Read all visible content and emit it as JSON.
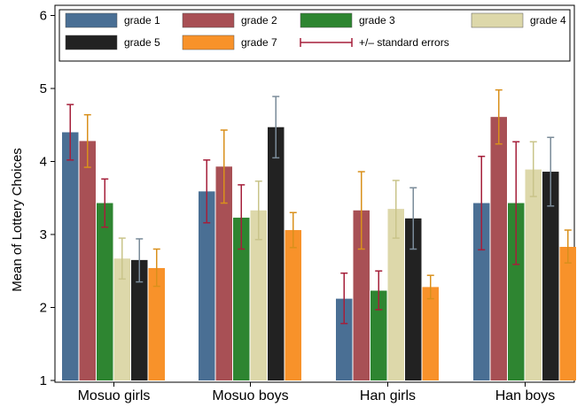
{
  "chart_data": {
    "type": "bar",
    "ylabel": "Mean of Lottery Choices",
    "xlabel": "",
    "ylim": [
      1,
      6
    ],
    "yticks": [
      1,
      2,
      3,
      4,
      5,
      6
    ],
    "grid": false,
    "legend_placement": "top",
    "categories": [
      "Mosuo girls",
      "Mosuo boys",
      "Han girls",
      "Han boys"
    ],
    "series": [
      {
        "name": "grade 1",
        "color": "#4a6f94",
        "values": [
          4.4,
          3.59,
          2.12,
          3.43
        ],
        "lower": [
          4.02,
          3.16,
          1.78,
          2.79
        ],
        "upper": [
          4.78,
          4.02,
          2.47,
          4.07
        ]
      },
      {
        "name": "grade 2",
        "color": "#a85055",
        "values": [
          4.28,
          3.93,
          3.33,
          4.61
        ],
        "lower": [
          3.92,
          3.43,
          2.8,
          4.24
        ],
        "upper": [
          4.64,
          4.43,
          3.86,
          4.98
        ]
      },
      {
        "name": "grade 3",
        "color": "#2e8531",
        "values": [
          3.43,
          3.23,
          2.23,
          3.43
        ],
        "lower": [
          3.1,
          2.8,
          1.97,
          2.59
        ],
        "upper": [
          3.76,
          3.68,
          2.5,
          4.27
        ]
      },
      {
        "name": "grade 4",
        "color": "#ddd8aa",
        "values": [
          2.67,
          3.33,
          3.35,
          3.89
        ],
        "lower": [
          2.39,
          2.93,
          2.95,
          3.52
        ],
        "upper": [
          2.95,
          3.73,
          3.74,
          4.27
        ]
      },
      {
        "name": "grade 5",
        "color": "#222222",
        "values": [
          2.65,
          4.47,
          3.22,
          3.86
        ],
        "lower": [
          2.35,
          4.05,
          2.8,
          3.39
        ],
        "upper": [
          2.94,
          4.89,
          3.64,
          4.33
        ]
      },
      {
        "name": "grade 7",
        "color": "#f8922a",
        "values": [
          2.54,
          3.06,
          2.28,
          2.83
        ],
        "lower": [
          2.29,
          2.82,
          2.12,
          2.61
        ],
        "upper": [
          2.8,
          3.3,
          2.44,
          3.06
        ]
      }
    ],
    "error_bar_label": "+/– standard errors",
    "error_bar_colors": [
      "#a51f3a",
      "#d9901c",
      "#a51f3a",
      "#c9c48a",
      "#7a8b99",
      "#d9901c"
    ]
  }
}
